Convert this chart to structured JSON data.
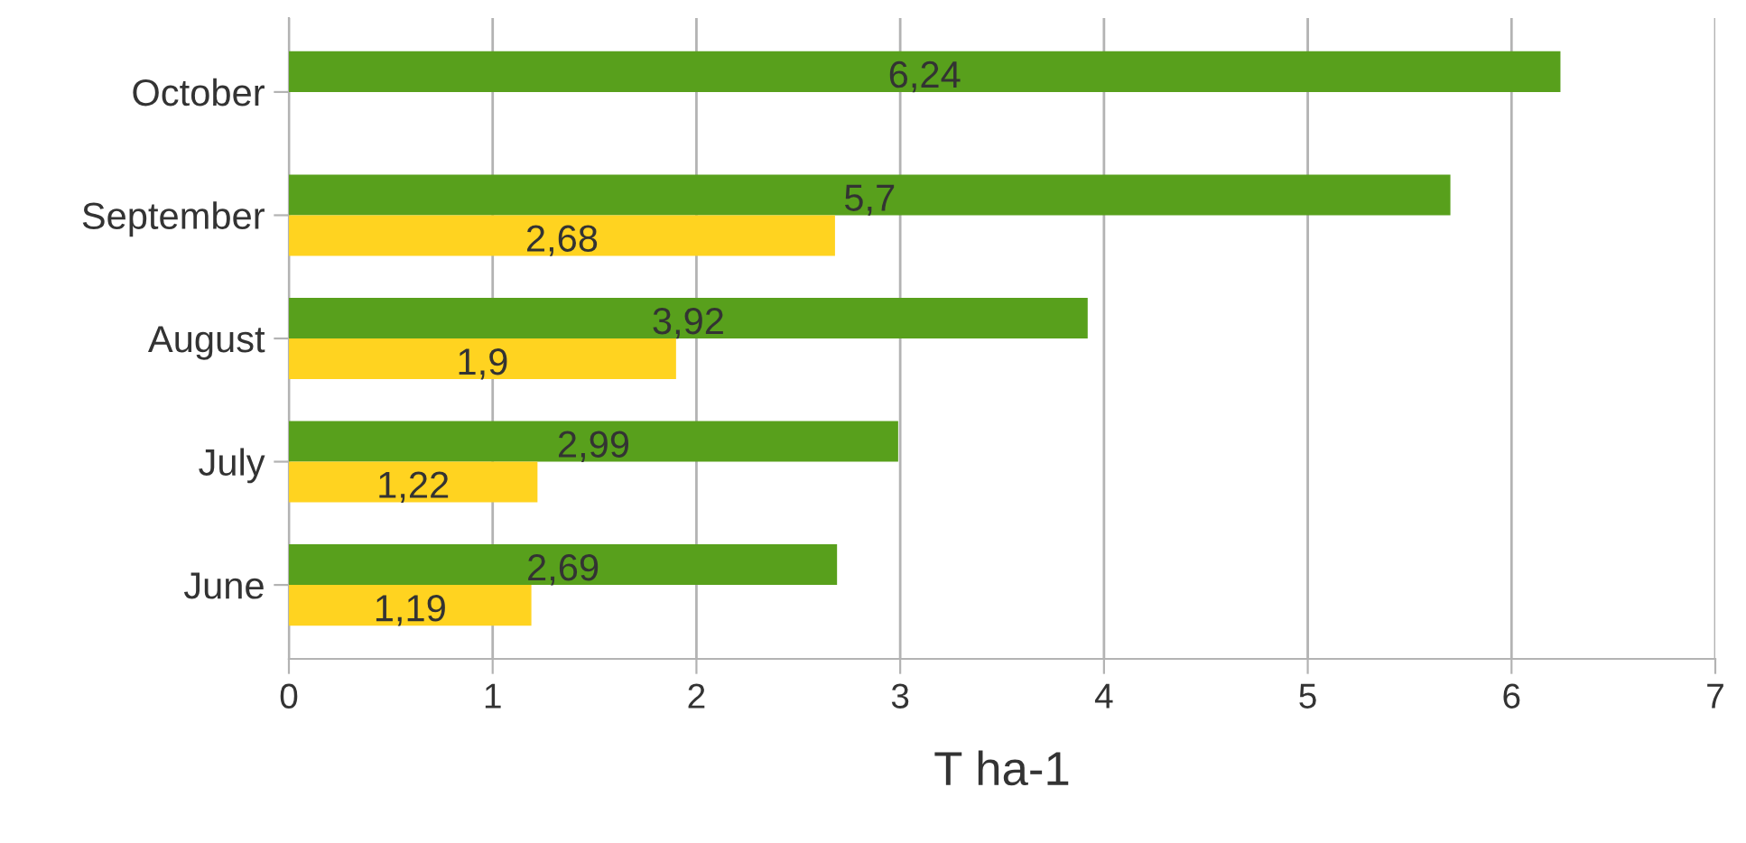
{
  "chart_data": {
    "type": "bar",
    "orientation": "horizontal",
    "xlabel": "T ha-1",
    "categories": [
      "October",
      "September",
      "August",
      "July",
      "June"
    ],
    "series": [
      {
        "color": "#58a01c",
        "values": [
          6.24,
          5.7,
          3.92,
          2.99,
          2.69
        ],
        "value_labels": [
          "6,24",
          "5,7",
          "3,92",
          "2,99",
          "2,69"
        ]
      },
      {
        "color": "#ffd320",
        "values": [
          null,
          2.68,
          1.9,
          1.22,
          1.19
        ],
        "value_labels": [
          null,
          "2,68",
          "1,9",
          "1,22",
          "1,19"
        ]
      }
    ],
    "xlim": [
      0,
      7
    ],
    "xticks": [
      0,
      1,
      2,
      3,
      4,
      5,
      6,
      7
    ],
    "grid": "x",
    "legend": false
  }
}
